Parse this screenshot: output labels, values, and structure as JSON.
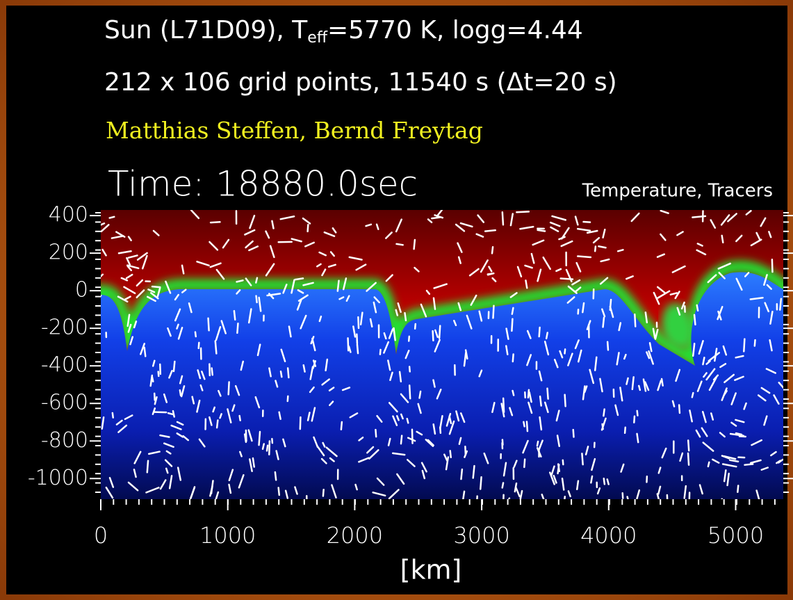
{
  "chart_data": {
    "type": "heatmap",
    "title": "Sun (L71D09), T",
    "title_subscript": "eff",
    "title_suffix": "=5770 K, logg=4.44",
    "subtitle": "212 x 106 grid points, 11540 s (Δt=20 s)",
    "authors": "Matthias Steffen, Bernd Freytag",
    "time_label": "Time: 18880.0sec",
    "panel_label": "Temperature, Tracers",
    "xlabel": "[km]",
    "xlim": [
      0,
      5375
    ],
    "xticks": [
      0,
      1000,
      2000,
      3000,
      4000,
      5000
    ],
    "ylim": [
      -1110,
      430
    ],
    "yticks": [
      400,
      200,
      0,
      -200,
      -400,
      -600,
      -800,
      -1000
    ]
  }
}
